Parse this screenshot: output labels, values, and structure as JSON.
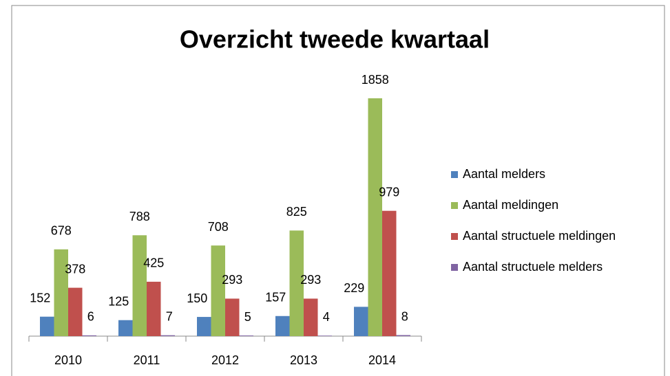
{
  "chart_data": {
    "type": "bar",
    "title": "Overzicht tweede kwartaal",
    "categories": [
      "2010",
      "2011",
      "2012",
      "2013",
      "2014"
    ],
    "series": [
      {
        "name": "Aantal melders",
        "color": "#4f81bd",
        "values": [
          152,
          125,
          150,
          157,
          229
        ]
      },
      {
        "name": "Aantal meldingen",
        "color": "#9bbb59",
        "values": [
          678,
          788,
          708,
          825,
          1858
        ]
      },
      {
        "name": "Aantal structuele meldingen",
        "color": "#c0504d",
        "values": [
          378,
          425,
          293,
          293,
          979
        ]
      },
      {
        "name": "Aantal structuele melders",
        "color": "#8064a2",
        "values": [
          6,
          7,
          5,
          4,
          8
        ]
      }
    ],
    "legend": "right"
  }
}
